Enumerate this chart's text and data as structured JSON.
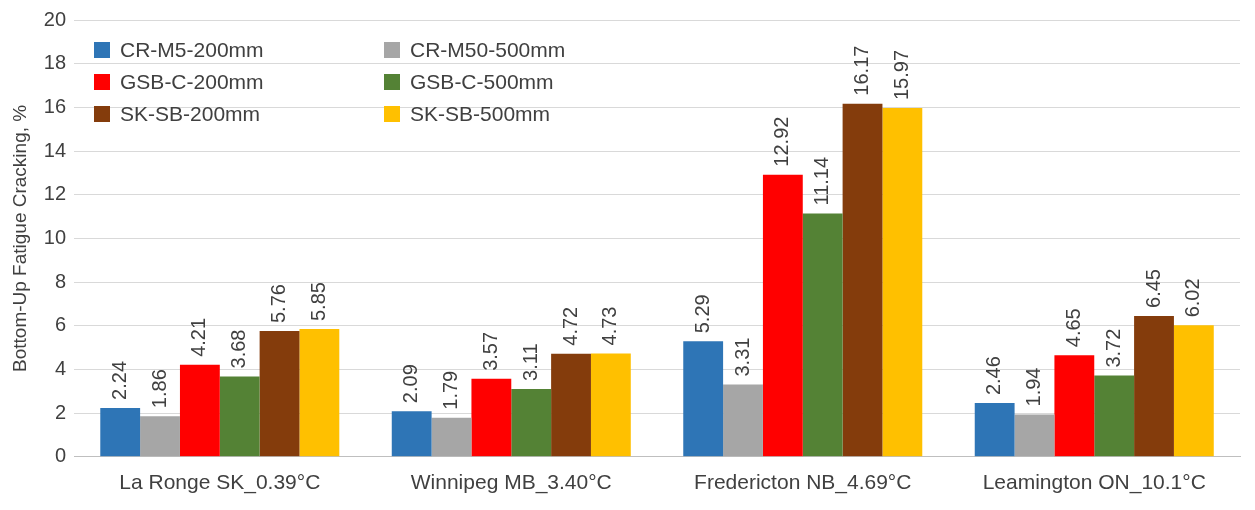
{
  "chart_data": {
    "type": "bar",
    "ylabel": "Bottom-Up Fatigue Cracking, %",
    "categories": [
      "La Ronge SK_0.39°C",
      "Winnipeg MB_3.40°C",
      "Fredericton NB_4.69°C",
      "Leamington ON_10.1°C"
    ],
    "series": [
      {
        "name": "CR-M5-200mm",
        "color": "#2e75b6",
        "values": [
          2.24,
          2.09,
          5.29,
          2.46
        ]
      },
      {
        "name": "CR-M50-500mm",
        "color": "#a6a6a6",
        "values": [
          1.86,
          1.79,
          3.31,
          1.94
        ]
      },
      {
        "name": "GSB-C-200mm",
        "color": "#ff0000",
        "values": [
          4.21,
          3.57,
          12.92,
          4.65
        ]
      },
      {
        "name": "GSB-C-500mm",
        "color": "#548235",
        "values": [
          3.68,
          3.11,
          11.14,
          3.72
        ]
      },
      {
        "name": "SK-SB-200mm",
        "color": "#843c0c",
        "values": [
          5.76,
          4.72,
          16.17,
          6.45
        ]
      },
      {
        "name": "SK-SB-500mm",
        "color": "#ffc000",
        "values": [
          5.85,
          4.73,
          15.97,
          6.02
        ]
      }
    ],
    "ylim": [
      0,
      20
    ],
    "yticks": [
      0,
      2,
      4,
      6,
      8,
      10,
      12,
      14,
      16,
      18,
      20
    ],
    "grid": "y",
    "legend": "top left",
    "data_labels": true
  }
}
